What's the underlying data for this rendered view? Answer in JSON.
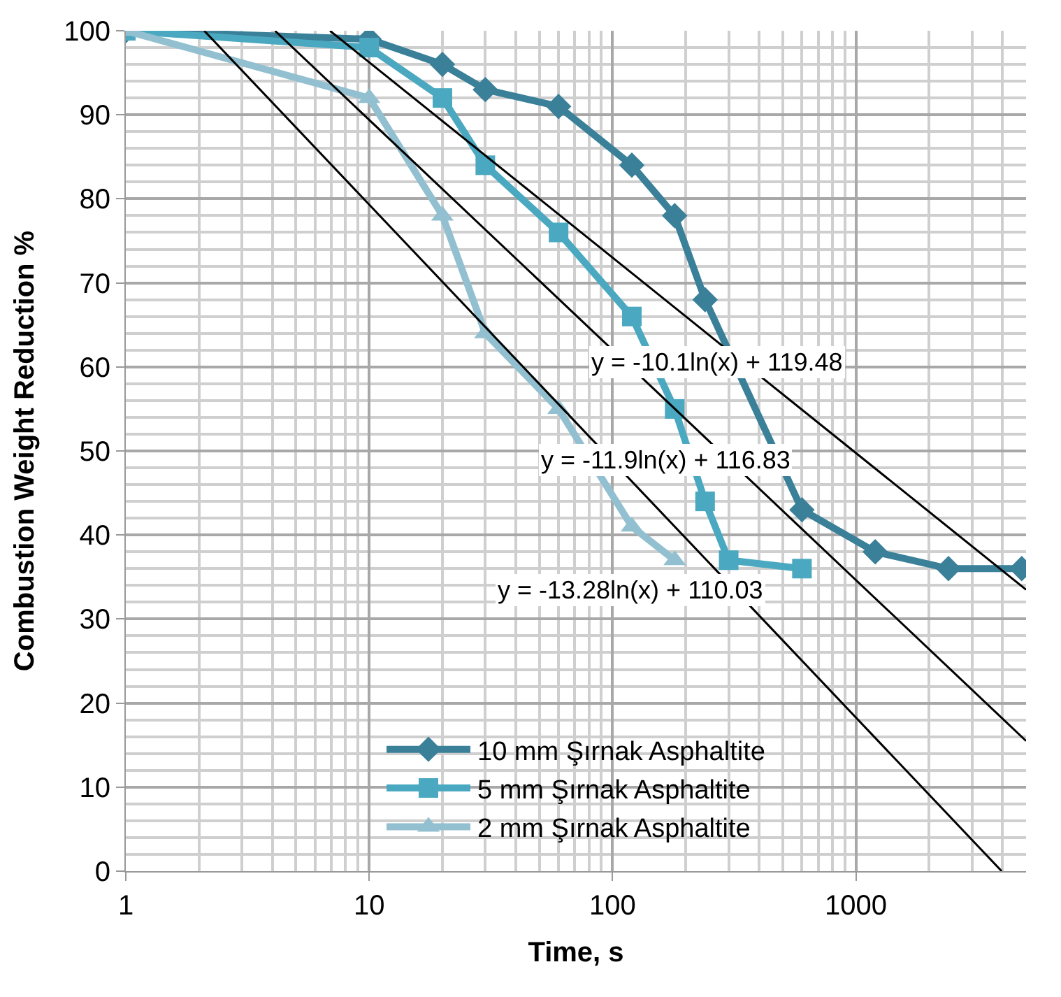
{
  "chart_data": {
    "type": "line",
    "xlabel": "Time, s",
    "ylabel": "Combustion Weight Reduction %",
    "log": "x",
    "xlim": [
      1,
      5000
    ],
    "xticks": [
      1,
      10,
      100,
      1000
    ],
    "ylim": [
      0,
      100
    ],
    "yticks": [
      0,
      10,
      20,
      30,
      40,
      50,
      60,
      70,
      80,
      90,
      100
    ],
    "grid": true,
    "legend": "bottom",
    "series": [
      {
        "name": "10 mm Şırnak Asphaltite",
        "color": "#3a8099",
        "marker": "diamond",
        "x": [
          1,
          10,
          20,
          30,
          60,
          120,
          180,
          240,
          600,
          1200,
          2400,
          4800
        ],
        "values": [
          100,
          99,
          96,
          93,
          91,
          84,
          78,
          68,
          43,
          38,
          36,
          36
        ]
      },
      {
        "name": "5 mm Şırnak Asphaltite",
        "color": "#4aa8c0",
        "marker": "square",
        "x": [
          1,
          10,
          20,
          30,
          60,
          120,
          180,
          240,
          300,
          600
        ],
        "values": [
          100,
          98,
          92,
          84,
          76,
          66,
          55,
          44,
          37,
          36
        ]
      },
      {
        "name": "2 mm Şırnak Asphaltite",
        "color": "#92c0d0",
        "marker": "triangle",
        "x": [
          1,
          10,
          20,
          30,
          60,
          120,
          180
        ],
        "values": [
          100,
          92,
          78,
          64,
          55,
          41,
          37
        ]
      },
      {
        "color": "#000000",
        "marker": "none",
        "x": [
          6.9,
          5000
        ],
        "values": [
          100,
          33.5
        ]
      },
      {
        "color": "#000000",
        "marker": "none",
        "x": [
          4.1,
          5000
        ],
        "values": [
          100,
          15.5
        ]
      },
      {
        "color": "#000000",
        "marker": "none",
        "x": [
          2.1,
          3970
        ],
        "values": [
          100,
          0
        ]
      }
    ],
    "annotations": [
      "y = -10.1ln(x) + 119.48",
      "y = -11.9ln(x) + 116.83",
      "y = -13.28ln(x) + 110.03"
    ]
  }
}
